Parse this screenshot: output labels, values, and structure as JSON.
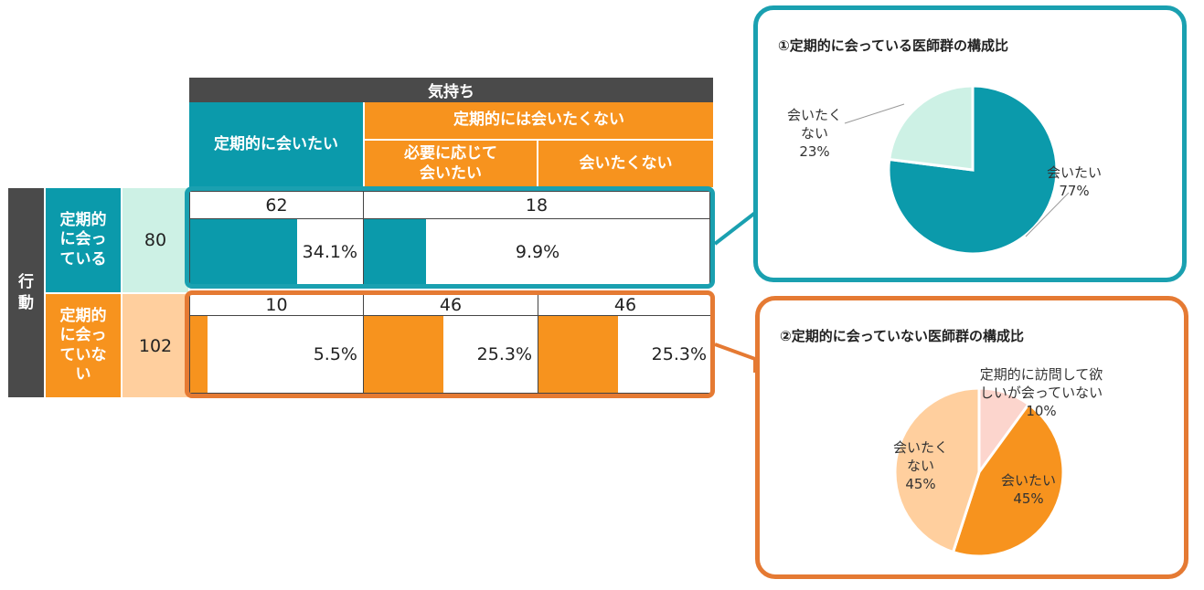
{
  "table": {
    "feeling_header": "気持ち",
    "col_want": "定期的に会いたい",
    "col_not_regular": "定期的には会いたくない",
    "col_as_needed": "必要に応じて会いたい",
    "col_dont_want": "会いたくない",
    "row_axis_label": "行動",
    "rows": [
      {
        "label": "定期的に会っている",
        "total": "80",
        "cells": [
          {
            "count": "62",
            "pct_label": "34.1%",
            "pct": 34.1
          },
          {
            "count": "18",
            "pct_label": "9.9%",
            "pct": 9.9
          }
        ]
      },
      {
        "label": "定期的に会っていない",
        "total": "102",
        "cells": [
          {
            "count": "10",
            "pct_label": "5.5%",
            "pct": 5.5
          },
          {
            "count": "46",
            "pct_label": "25.3%",
            "pct": 25.3
          },
          {
            "count": "46",
            "pct_label": "25.3%",
            "pct": 25.3
          }
        ]
      }
    ]
  },
  "colors": {
    "teal": "#0b9aab",
    "teal_light": "#cdf1e5",
    "orange": "#f7931e",
    "orange_light": "#ffcf9e",
    "orange_pale": "#fcd5cd",
    "callout_teal": "#1aa0b0",
    "callout_orange": "#e57a33",
    "dark": "#4a4a4a"
  },
  "chart_data": [
    {
      "type": "pie",
      "title": "①定期的に会っている医師群の構成比",
      "slices": [
        {
          "label": "会いたい",
          "value": 77,
          "value_label": "77%",
          "color": "#0b9aab"
        },
        {
          "label": "会いたくない",
          "value": 23,
          "value_label": "23%",
          "color": "#cdf1e5"
        }
      ]
    },
    {
      "type": "pie",
      "title": "②定期的に会っていない医師群の構成比",
      "slices": [
        {
          "label": "定期的に訪問して欲しいが会っていない",
          "value": 10,
          "value_label": "10%",
          "color": "#fcd5cd"
        },
        {
          "label": "会いたい",
          "value": 45,
          "value_label": "45%",
          "color": "#f7931e"
        },
        {
          "label": "会いたくない",
          "value": 45,
          "value_label": "45%",
          "color": "#ffcf9e"
        }
      ]
    }
  ]
}
